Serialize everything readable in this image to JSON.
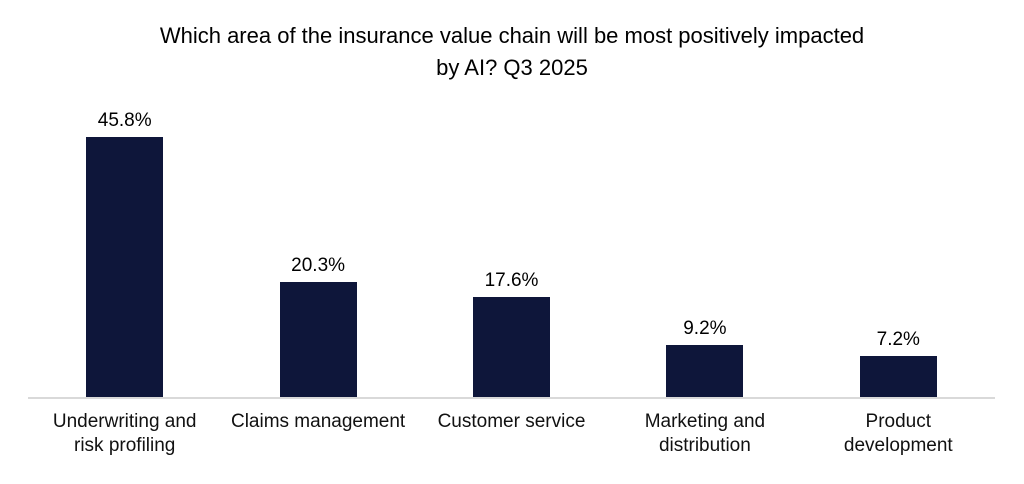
{
  "chart_data": {
    "type": "bar",
    "title": "Which area of the insurance value chain will be most positively impacted by AI? Q3 2025",
    "title_lines": [
      "Which area of the insurance value chain will be most positively impacted",
      "by AI? Q3 2025"
    ],
    "categories": [
      "Underwriting and risk profiling",
      "Claims management",
      "Customer service",
      "Marketing and distribution",
      "Product development"
    ],
    "categories_wrapped": [
      [
        "Underwriting and",
        "risk profiling"
      ],
      [
        "Claims management"
      ],
      [
        "Customer service"
      ],
      [
        "Marketing and",
        "distribution"
      ],
      [
        "Product",
        "development"
      ]
    ],
    "values": [
      45.8,
      20.3,
      17.6,
      9.2,
      7.2
    ],
    "value_labels": [
      "45.8%",
      "20.3%",
      "17.6%",
      "9.2%",
      "7.2%"
    ],
    "xlabel": "",
    "ylabel": "",
    "ylim": [
      0,
      50
    ],
    "grid": false,
    "legend": "none",
    "bar_color": "#0E163A",
    "axis_line_color": "#D9D9D9",
    "title_color": "#000000",
    "label_color": "#000000"
  }
}
